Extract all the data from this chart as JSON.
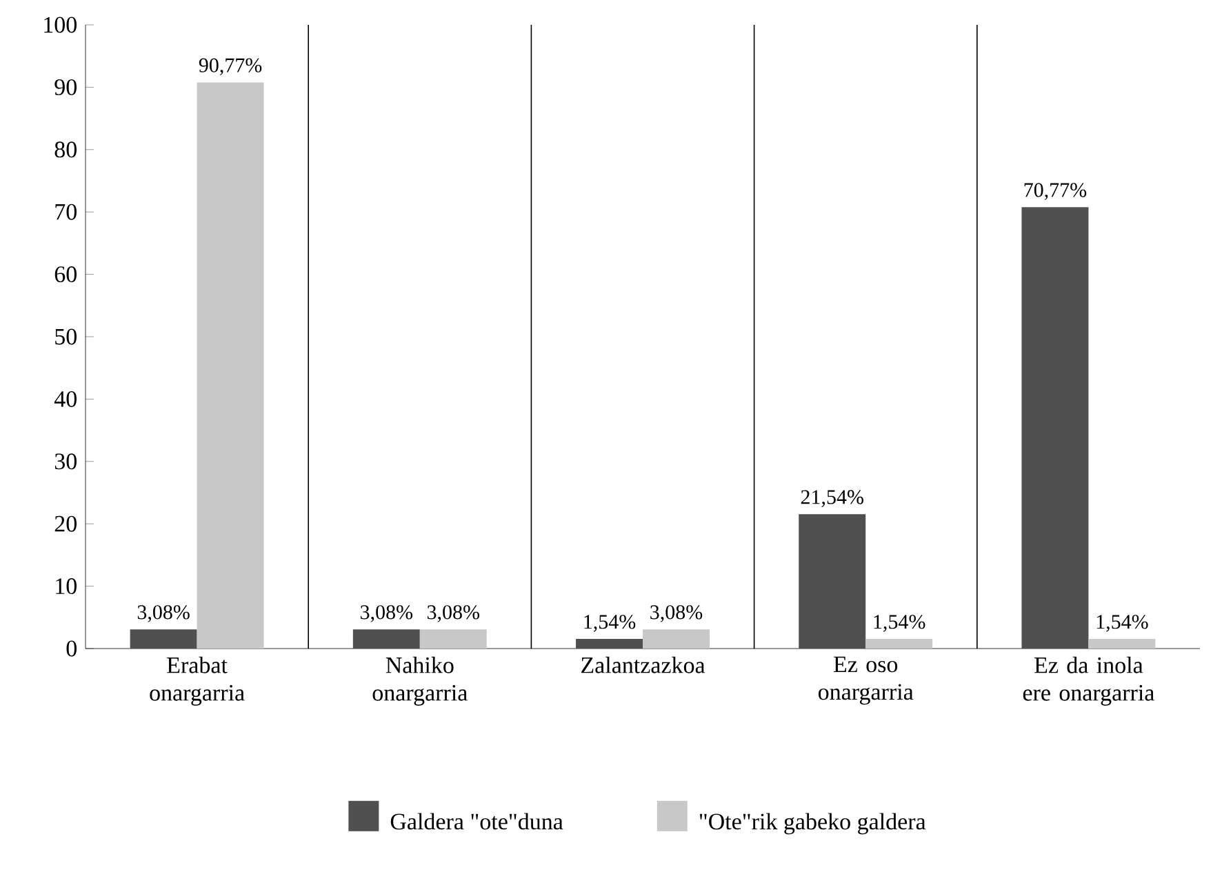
{
  "chart_data": {
    "type": "bar",
    "categories": [
      "Erabat onargarria",
      "Nahiko onargarria",
      "Zalantzazkoa",
      "Ez oso onargarria",
      "Ez da inola ere onargarria"
    ],
    "series": [
      {
        "name": "Galdera \"ote\"duna",
        "color": "#505050",
        "values": [
          3.08,
          3.08,
          1.54,
          21.54,
          70.77
        ],
        "value_labels": [
          "3,08%",
          "3,08%",
          "1,54%",
          "21,54%",
          "70,77%"
        ]
      },
      {
        "name": "\"Ote\"rik gabeko galdera",
        "color": "#c8c8c8",
        "values": [
          90.77,
          3.08,
          3.08,
          1.54,
          1.54
        ],
        "value_labels": [
          "90,77%",
          "3,08%",
          "3,08%",
          "1,54%",
          "1,54%"
        ]
      }
    ],
    "ylim": [
      0,
      100
    ],
    "yticks": [
      0,
      10,
      20,
      30,
      40,
      50,
      60,
      70,
      80,
      90,
      100
    ],
    "grid": "x",
    "legend": "bottom"
  }
}
